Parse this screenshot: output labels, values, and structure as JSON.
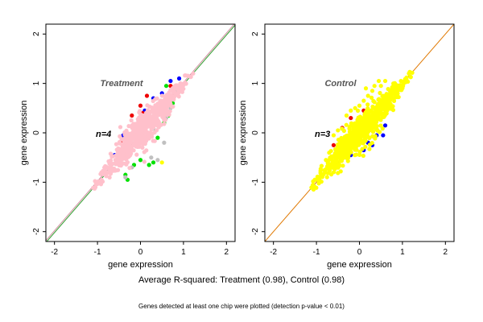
{
  "summary": "Average R-squared: Treatment (0.98), Control (0.98)",
  "footnote": "Genes detected at least one chip were plotted (detection p-value < 0.01)",
  "chart_data": [
    {
      "type": "scatter",
      "title": "Treatment",
      "annotation": "n=4",
      "xlabel": "gene expression",
      "ylabel": "gene expression",
      "xlim": [
        -2.2,
        2.2
      ],
      "ylim": [
        -2.2,
        2.2
      ],
      "xticks": [
        -2,
        -1,
        0,
        1,
        2
      ],
      "yticks": [
        -2,
        -1,
        0,
        1,
        2
      ],
      "grid": false,
      "diagonal_lines": [
        {
          "color": "#2e9e2e",
          "intercept": -0.02
        },
        {
          "color": "#d08fa0",
          "intercept": 0.02
        }
      ],
      "series": [
        {
          "color": "#0000ff",
          "points": [
            [
              -0.15,
              -0.05
            ],
            [
              0.3,
              0.7
            ],
            [
              0.5,
              0.8
            ],
            [
              0.7,
              1.05
            ],
            [
              -0.4,
              -0.05
            ],
            [
              0.2,
              0.35
            ],
            [
              0.9,
              1.1
            ],
            [
              -0.6,
              -0.45
            ],
            [
              0.1,
              0.45
            ],
            [
              0.6,
              0.55
            ]
          ]
        },
        {
          "color": "#ee0000",
          "points": [
            [
              -0.2,
              0.35
            ],
            [
              0.0,
              0.55
            ],
            [
              0.05,
              0.4
            ],
            [
              0.45,
              0.5
            ],
            [
              0.7,
              0.95
            ],
            [
              -0.45,
              -0.2
            ],
            [
              0.15,
              0.75
            ],
            [
              0.3,
              0.3
            ]
          ]
        },
        {
          "color": "#00e000",
          "points": [
            [
              0.2,
              -0.65
            ],
            [
              -0.3,
              -0.95
            ],
            [
              0.5,
              0.45
            ],
            [
              0.6,
              0.95
            ],
            [
              0.3,
              -0.6
            ],
            [
              -0.35,
              -0.85
            ],
            [
              0.4,
              -0.1
            ],
            [
              -0.15,
              -0.65
            ],
            [
              0.55,
              0.2
            ],
            [
              0.0,
              -0.55
            ],
            [
              0.65,
              0.35
            ],
            [
              0.75,
              0.6
            ]
          ]
        },
        {
          "color": "#ffff00",
          "points": [
            [
              0.5,
              -0.6
            ]
          ]
        },
        {
          "color": "#c0c0c0",
          "points": [
            [
              0.4,
              -0.55
            ],
            [
              0.6,
              0.3
            ],
            [
              -0.35,
              -0.9
            ],
            [
              0.25,
              -0.5
            ],
            [
              -0.6,
              -0.75
            ],
            [
              0.7,
              0.5
            ],
            [
              0.35,
              0.05
            ],
            [
              -0.2,
              -0.7
            ],
            [
              0.55,
              -0.2
            ],
            [
              0.8,
              0.85
            ]
          ]
        },
        {
          "color": "#ffc0cb",
          "cloud": {
            "center": [
              0.05,
              0.05
            ],
            "along": 1.15,
            "across": 0.3,
            "count": 650
          }
        }
      ]
    },
    {
      "type": "scatter",
      "title": "Control",
      "annotation": "n=3",
      "xlabel": "gene expression",
      "ylabel": "gene expression",
      "xlim": [
        -2.2,
        2.2
      ],
      "ylim": [
        -2.2,
        2.2
      ],
      "xticks": [
        -2,
        -1,
        0,
        1,
        2
      ],
      "yticks": [
        -2,
        -1,
        0,
        1,
        2
      ],
      "grid": false,
      "diagonal_lines": [
        {
          "color": "#e07800",
          "intercept": 0.0
        }
      ],
      "series": [
        {
          "color": "#0000ff",
          "points": [
            [
              0.2,
              -0.2
            ],
            [
              0.4,
              -0.05
            ],
            [
              0.7,
              0.6
            ],
            [
              0.55,
              -0.05
            ],
            [
              0.3,
              -0.25
            ],
            [
              0.8,
              0.8
            ],
            [
              -0.2,
              -0.45
            ],
            [
              0.6,
              0.15
            ],
            [
              -0.5,
              -0.6
            ],
            [
              0.9,
              0.95
            ],
            [
              0.1,
              -0.35
            ]
          ]
        },
        {
          "color": "#ee0000",
          "points": [
            [
              -0.4,
              0.1
            ],
            [
              -0.2,
              0.3
            ],
            [
              -0.1,
              -0.1
            ],
            [
              -0.35,
              -0.4
            ],
            [
              0.1,
              0.45
            ],
            [
              -0.6,
              -0.25
            ],
            [
              0.0,
              0.15
            ],
            [
              -0.25,
              -0.3
            ]
          ]
        },
        {
          "color": "#ffff00",
          "cloud": {
            "center": [
              0.05,
              0.05
            ],
            "along": 1.15,
            "across": 0.3,
            "count": 700
          },
          "points": [
            [
              0.3,
              0.85
            ],
            [
              0.5,
              0.95
            ],
            [
              0.45,
              1.05
            ],
            [
              0.2,
              0.75
            ],
            [
              0.1,
              0.65
            ],
            [
              -0.3,
              0.35
            ],
            [
              -0.6,
              -0.05
            ],
            [
              -0.2,
              0.45
            ],
            [
              0.15,
              0.9
            ],
            [
              0.6,
              1.05
            ],
            [
              -0.5,
              0.05
            ],
            [
              0.35,
              0.95
            ],
            [
              0.0,
              0.55
            ],
            [
              -0.1,
              0.5
            ]
          ]
        }
      ]
    }
  ]
}
